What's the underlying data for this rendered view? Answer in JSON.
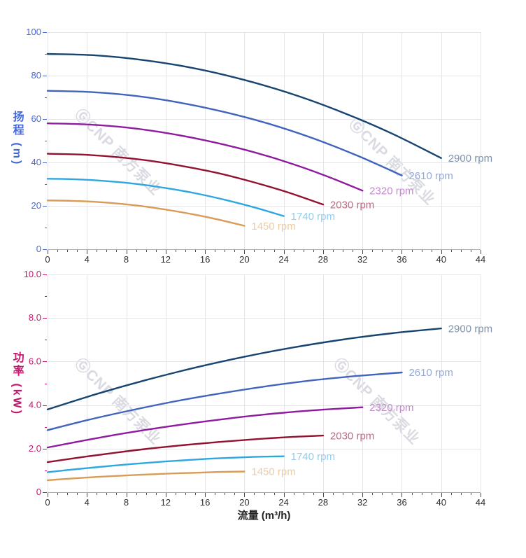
{
  "watermark": {
    "text": "ⒼCNP 南方泵业"
  },
  "chart_data": [
    {
      "type": "line",
      "title": "",
      "xlabel": "",
      "ylabel": "扬程 (m)",
      "xlim": [
        0,
        44
      ],
      "ylim": [
        0,
        100
      ],
      "x_major": 4,
      "x_minor": 1,
      "y_major": 20,
      "y_minor": 10,
      "grid": true,
      "legend_position": "line-end-labels",
      "x_tick_labels": [
        "0",
        "4",
        "8",
        "12",
        "16",
        "20",
        "24",
        "28",
        "32",
        "36",
        "40",
        "44"
      ],
      "y_tick_labels": [
        "0",
        "20",
        "40",
        "60",
        "80",
        "100"
      ],
      "axis_color": "#4468D6",
      "grid_color": "#E4E4E9",
      "x_tick_color": "#4A4A4A",
      "x_text_color": "#2D2D2D",
      "series": [
        {
          "name": "2900 rpm",
          "rpm": 2900,
          "color": "#17456F",
          "label_color": "#7E94AE",
          "points": [
            [
              0,
              90
            ],
            [
              5,
              89.3
            ],
            [
              10,
              87
            ],
            [
              15,
              83.3
            ],
            [
              20,
              78
            ],
            [
              25,
              71.3
            ],
            [
              30,
              63
            ],
            [
              35,
              53.3
            ],
            [
              40,
              42
            ]
          ]
        },
        {
          "name": "2610 rpm",
          "rpm": 2610,
          "color": "#4164BC",
          "label_color": "#93A9DC",
          "points": [
            [
              0,
              73
            ],
            [
              4.5,
              72.4
            ],
            [
              9,
              70.6
            ],
            [
              13.5,
              67.5
            ],
            [
              18,
              63.2
            ],
            [
              22.5,
              57.8
            ],
            [
              27,
              51.1
            ],
            [
              31.5,
              43.1
            ],
            [
              36,
              34
            ]
          ]
        },
        {
          "name": "2320 rpm",
          "rpm": 2320,
          "color": "#8F1C9F",
          "label_color": "#C289CB",
          "points": [
            [
              0,
              58
            ],
            [
              4,
              57.5
            ],
            [
              8,
              56.1
            ],
            [
              12,
              53.6
            ],
            [
              16,
              50.2
            ],
            [
              20,
              45.9
            ],
            [
              24,
              40.6
            ],
            [
              28,
              34.3
            ],
            [
              32,
              27
            ]
          ]
        },
        {
          "name": "2030 rpm",
          "rpm": 2030,
          "color": "#921232",
          "label_color": "#B66F80",
          "points": [
            [
              0,
              44
            ],
            [
              3.5,
              43.6
            ],
            [
              7,
              42.5
            ],
            [
              10.5,
              40.7
            ],
            [
              14,
              38.1
            ],
            [
              17.5,
              34.9
            ],
            [
              21,
              30.8
            ],
            [
              24.5,
              26.1
            ],
            [
              28,
              20.6
            ]
          ]
        },
        {
          "name": "1740 rpm",
          "rpm": 1740,
          "color": "#2EA7E0",
          "label_color": "#93CEEC",
          "points": [
            [
              0,
              32.5
            ],
            [
              3,
              32.2
            ],
            [
              6,
              31.4
            ],
            [
              9,
              30.1
            ],
            [
              12,
              28.2
            ],
            [
              15,
              25.8
            ],
            [
              18,
              22.8
            ],
            [
              21,
              19.3
            ],
            [
              24,
              15.3
            ]
          ]
        },
        {
          "name": "1450 rpm",
          "rpm": 1450,
          "color": "#D99B55",
          "label_color": "#EACCA4",
          "points": [
            [
              0,
              22.5
            ],
            [
              2.5,
              22.3
            ],
            [
              5,
              21.8
            ],
            [
              7.5,
              20.9
            ],
            [
              10,
              19.6
            ],
            [
              12.5,
              17.9
            ],
            [
              15,
              15.9
            ],
            [
              17.5,
              13.5
            ],
            [
              20,
              10.8
            ]
          ]
        }
      ]
    },
    {
      "type": "line",
      "title": "",
      "xlabel": "流量 (m³/h)",
      "ylabel": "功率 (kW)",
      "xlim": [
        0,
        44
      ],
      "ylim": [
        0,
        10
      ],
      "x_major": 4,
      "x_minor": 1,
      "y_major": 2,
      "y_minor": 1,
      "grid": true,
      "legend_position": "line-end-labels",
      "x_tick_labels": [
        "0",
        "4",
        "8",
        "12",
        "16",
        "20",
        "24",
        "28",
        "32",
        "36",
        "40",
        "44"
      ],
      "y_tick_labels": [
        "0",
        "2.0",
        "4.0",
        "6.0",
        "8.0",
        "10.0"
      ],
      "axis_color": "#C2186B",
      "grid_color": "#E4E4E9",
      "x_tick_color": "#4A4A4A",
      "x_text_color": "#2D2D2D",
      "series": [
        {
          "name": "2900 rpm",
          "rpm": 2900,
          "color": "#17456F",
          "label_color": "#7E94AE",
          "points": [
            [
              0,
              3.8
            ],
            [
              5,
              4.51
            ],
            [
              10,
              5.15
            ],
            [
              15,
              5.72
            ],
            [
              20,
              6.22
            ],
            [
              25,
              6.65
            ],
            [
              30,
              7.01
            ],
            [
              35,
              7.3
            ],
            [
              40,
              7.52
            ]
          ]
        },
        {
          "name": "2610 rpm",
          "rpm": 2610,
          "color": "#4164BC",
          "label_color": "#93A9DC",
          "points": [
            [
              0,
              2.85
            ],
            [
              4.5,
              3.36
            ],
            [
              9,
              3.81
            ],
            [
              13.5,
              4.22
            ],
            [
              18,
              4.57
            ],
            [
              22.5,
              4.88
            ],
            [
              27,
              5.14
            ],
            [
              31.5,
              5.34
            ],
            [
              36,
              5.5
            ]
          ]
        },
        {
          "name": "2320 rpm",
          "rpm": 2320,
          "color": "#8F1C9F",
          "label_color": "#C289CB",
          "points": [
            [
              0,
              2.05
            ],
            [
              4,
              2.4
            ],
            [
              8,
              2.72
            ],
            [
              12,
              3.0
            ],
            [
              16,
              3.25
            ],
            [
              20,
              3.47
            ],
            [
              24,
              3.65
            ],
            [
              28,
              3.79
            ],
            [
              32,
              3.9
            ]
          ]
        },
        {
          "name": "2030 rpm",
          "rpm": 2030,
          "color": "#921232",
          "label_color": "#B66F80",
          "points": [
            [
              0,
              1.38
            ],
            [
              3.5,
              1.61
            ],
            [
              7,
              1.82
            ],
            [
              10.5,
              2.01
            ],
            [
              14,
              2.17
            ],
            [
              17.5,
              2.31
            ],
            [
              21,
              2.43
            ],
            [
              24.5,
              2.53
            ],
            [
              28,
              2.6
            ]
          ]
        },
        {
          "name": "1740 rpm",
          "rpm": 1740,
          "color": "#2EA7E0",
          "label_color": "#93CEEC",
          "points": [
            [
              0,
              0.92
            ],
            [
              3,
              1.06
            ],
            [
              6,
              1.19
            ],
            [
              9,
              1.31
            ],
            [
              12,
              1.41
            ],
            [
              15,
              1.5
            ],
            [
              18,
              1.57
            ],
            [
              21,
              1.62
            ],
            [
              24,
              1.65
            ]
          ]
        },
        {
          "name": "1450 rpm",
          "rpm": 1450,
          "color": "#D99B55",
          "label_color": "#EACCA4",
          "points": [
            [
              0,
              0.55
            ],
            [
              2.5,
              0.63
            ],
            [
              5,
              0.7
            ],
            [
              7.5,
              0.76
            ],
            [
              10,
              0.81
            ],
            [
              12.5,
              0.86
            ],
            [
              15,
              0.89
            ],
            [
              17.5,
              0.93
            ],
            [
              20,
              0.95
            ]
          ]
        }
      ]
    }
  ]
}
